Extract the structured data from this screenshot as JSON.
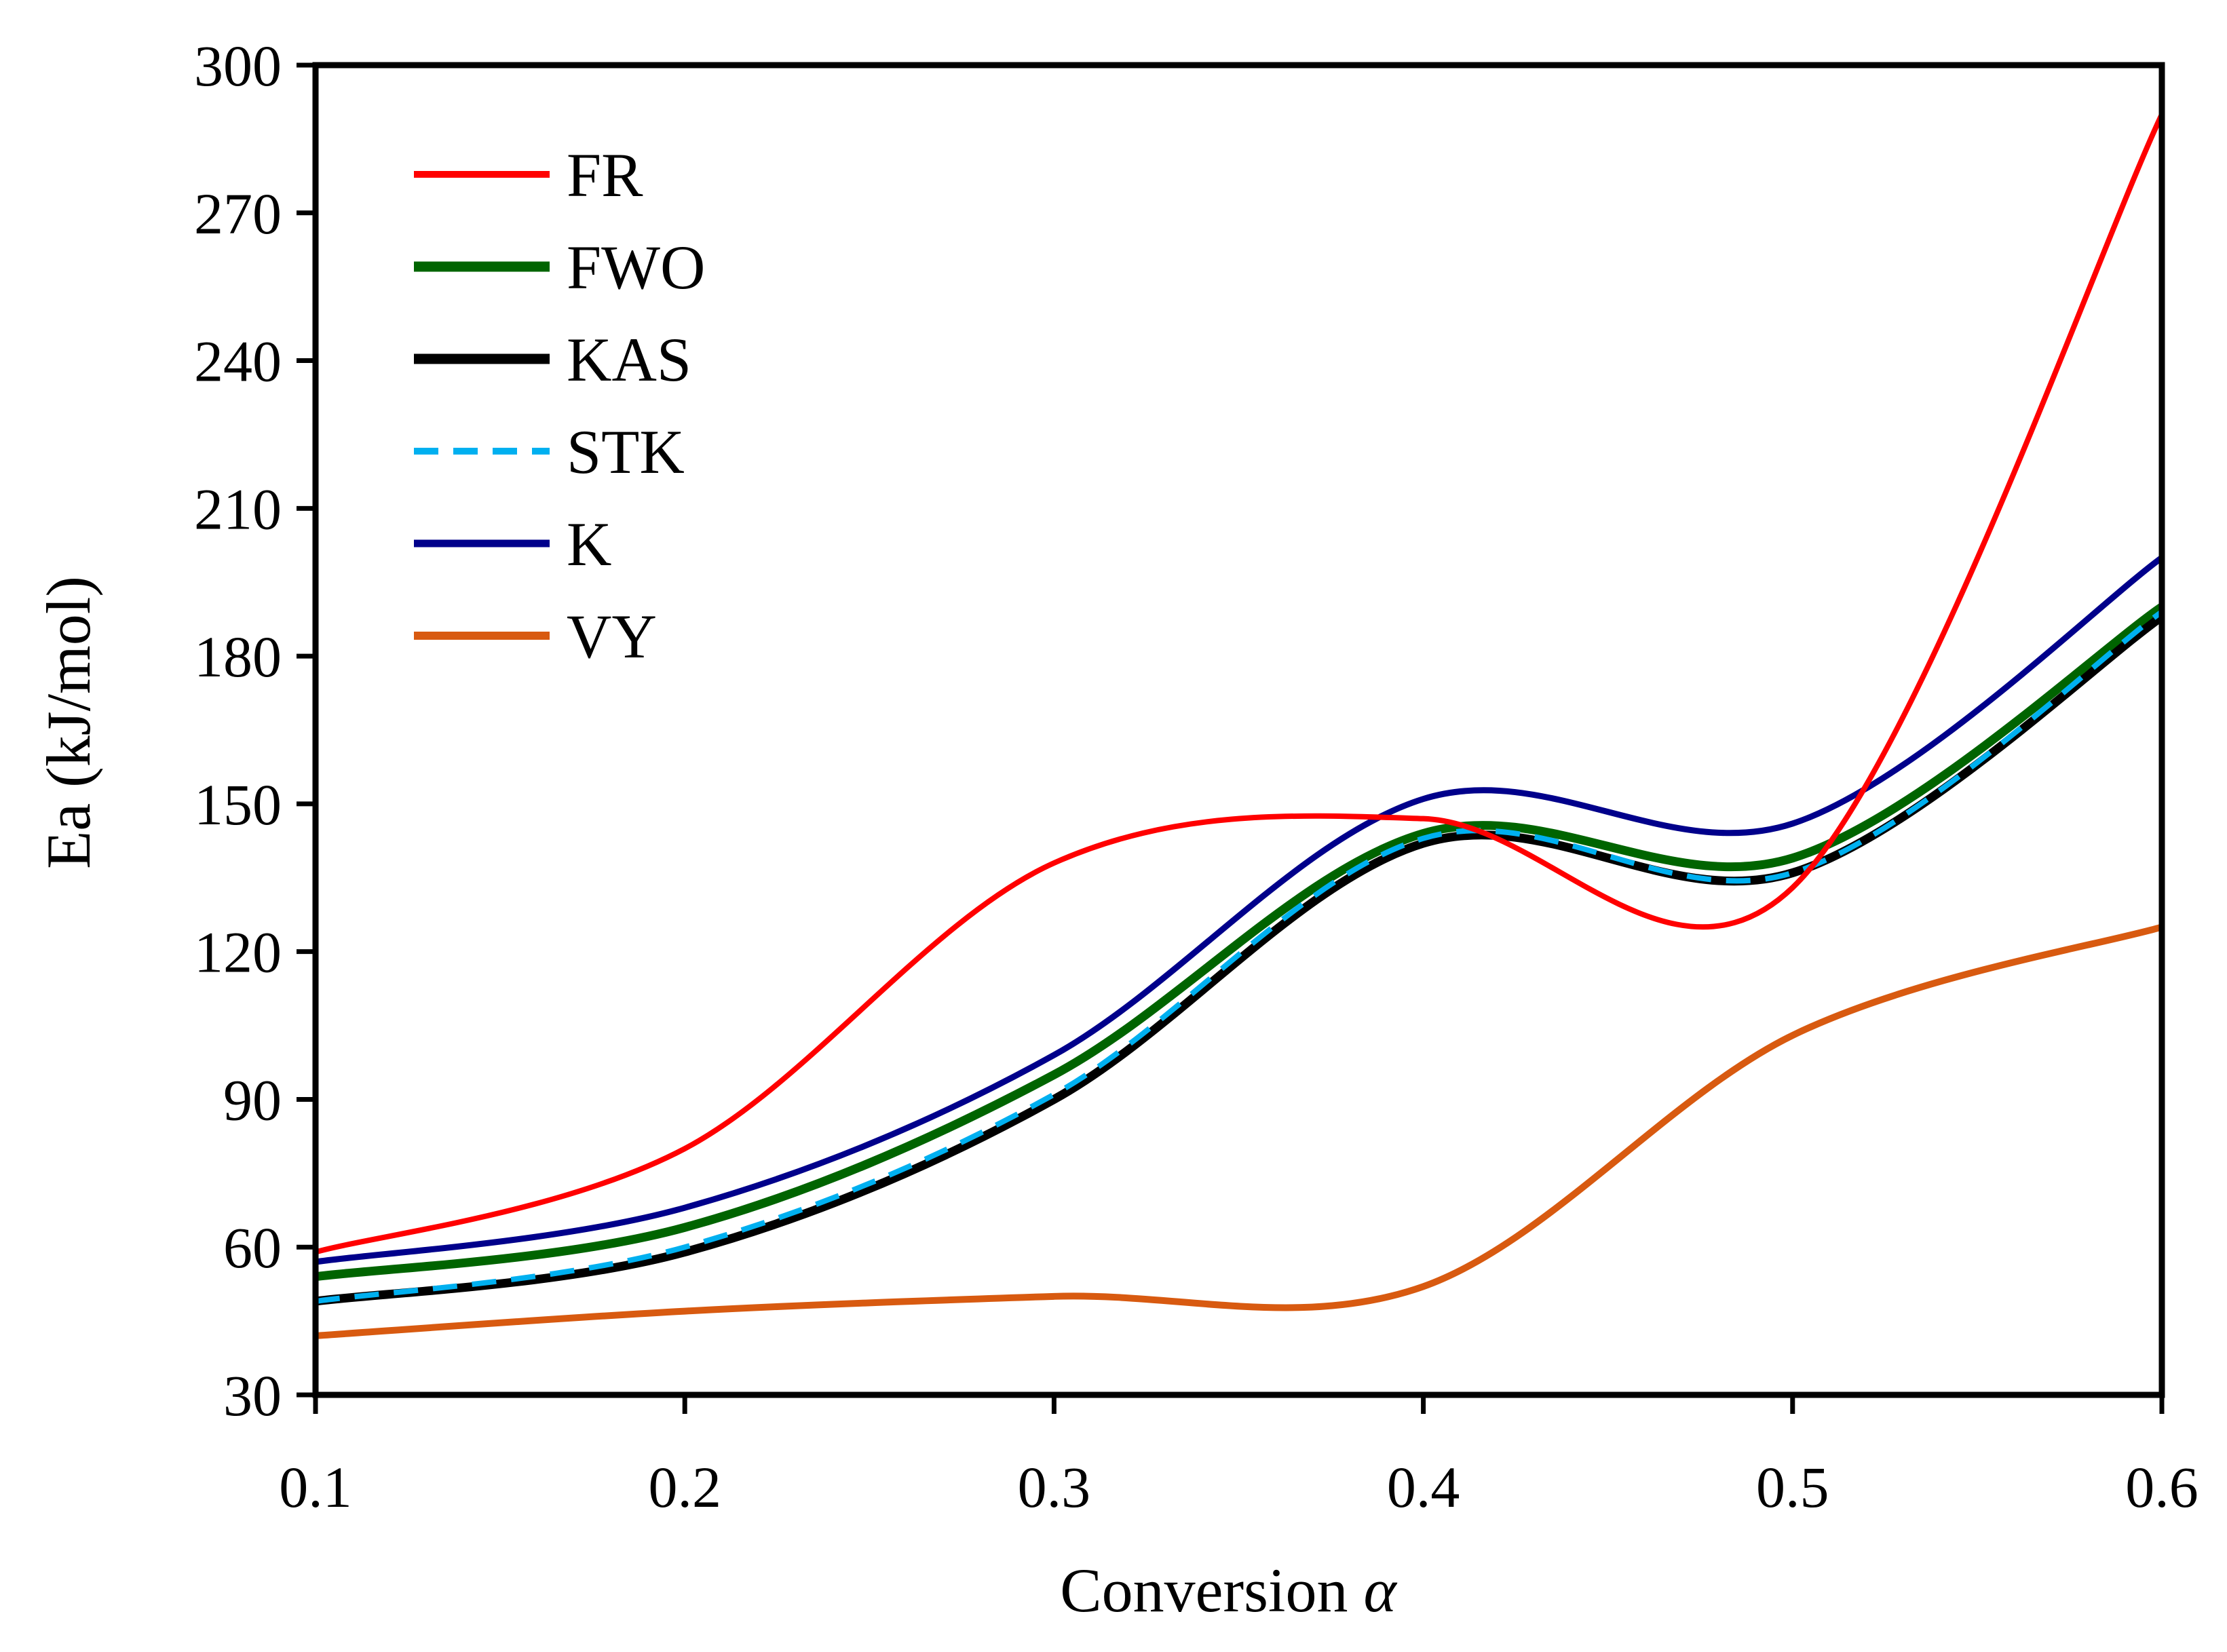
{
  "chart_data": {
    "type": "line",
    "title": "",
    "xlabel": "Conversion",
    "xlabel_symbol": "α",
    "ylabel": "Ea (kJ/mol)",
    "xlim": [
      0.1,
      0.6
    ],
    "ylim": [
      30,
      300
    ],
    "xticks": [
      0.1,
      0.2,
      0.3,
      0.4,
      0.5,
      0.6
    ],
    "yticks": [
      30,
      60,
      90,
      120,
      150,
      180,
      210,
      240,
      270,
      300
    ],
    "xtick_labels": [
      "0.1",
      "0.2",
      "0.3",
      "0.4",
      "0.5",
      "0.6"
    ],
    "ytick_labels": [
      "30",
      "60",
      "90",
      "120",
      "150",
      "180",
      "210",
      "240",
      "270",
      "300"
    ],
    "grid": false,
    "smooth": true,
    "legend_position": "top-left",
    "x": [
      0.1,
      0.2,
      0.3,
      0.4,
      0.5,
      0.6
    ],
    "series": [
      {
        "name": "FR",
        "color": "#ff0000",
        "dash": false,
        "values": [
          59,
          80,
          138,
          147,
          133,
          290
        ]
      },
      {
        "name": "FWO",
        "color": "#006400",
        "dash": false,
        "values": [
          54,
          64,
          95,
          144,
          139,
          190
        ]
      },
      {
        "name": "KAS",
        "color": "#000000",
        "dash": false,
        "values": [
          49,
          59,
          90,
          142,
          136,
          188
        ]
      },
      {
        "name": "STK",
        "color": "#00b0f0",
        "dash": true,
        "values": [
          49,
          60,
          91,
          143,
          136,
          189
        ]
      },
      {
        "name": "K",
        "color": "#00008b",
        "dash": false,
        "values": [
          57,
          68,
          99,
          151,
          146,
          200
        ]
      },
      {
        "name": "VY",
        "color": "#d85a10",
        "dash": false,
        "values": [
          42,
          47,
          50,
          52,
          103,
          125
        ]
      }
    ]
  }
}
